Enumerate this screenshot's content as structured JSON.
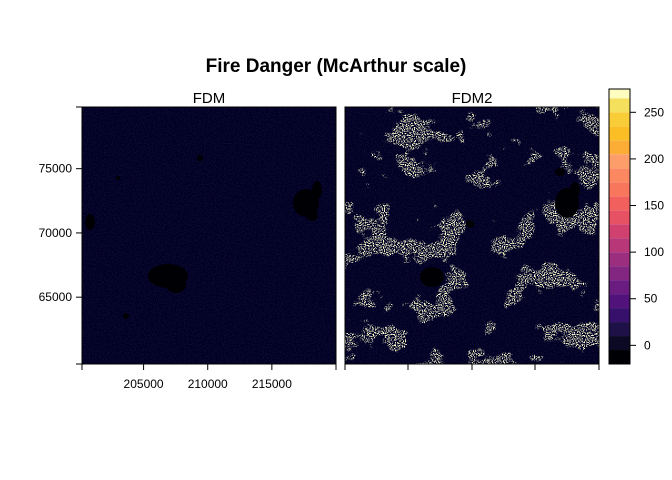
{
  "chart_data": {
    "type": "heatmap",
    "title": "Fire Danger (McArthur scale)",
    "panels": [
      {
        "name": "FDM",
        "dominant_value": 0,
        "hot_fraction": 0.0
      },
      {
        "name": "FDM2",
        "dominant_value": 0,
        "hot_fraction": 0.22,
        "hot_value": 270
      }
    ],
    "x_ticks": [
      {
        "value": 205000,
        "label": "205000"
      },
      {
        "value": 210000,
        "label": "210000"
      },
      {
        "value": 215000,
        "label": "215000"
      }
    ],
    "y_ticks": [
      {
        "value": 65000,
        "label": "65000"
      },
      {
        "value": 70000,
        "label": "70000"
      },
      {
        "value": 75000,
        "label": "75000"
      }
    ],
    "xlim": [
      200200,
      220000
    ],
    "ylim": [
      59800,
      79800
    ],
    "colorkey": {
      "range": [
        -20,
        275
      ],
      "breaks": [
        -20,
        -5,
        10,
        25,
        40,
        55,
        70,
        85,
        100,
        115,
        130,
        145,
        160,
        175,
        190,
        205,
        220,
        235,
        250,
        265,
        275
      ],
      "colors": [
        "#000004",
        "#0b0924",
        "#1d1147",
        "#36106b",
        "#51127c",
        "#6a1c81",
        "#822681",
        "#9c2e7f",
        "#b73779",
        "#d0416f",
        "#e65164",
        "#f1605d",
        "#f8765c",
        "#fb8861",
        "#fd9d6a",
        "#fcad35",
        "#fbbe24",
        "#f8cd37",
        "#f4e05c",
        "#fcfdbf"
      ],
      "ticks": [
        {
          "value": 0,
          "label": "0"
        },
        {
          "value": 50,
          "label": "50"
        },
        {
          "value": 100,
          "label": "100"
        },
        {
          "value": 150,
          "label": "150"
        },
        {
          "value": 200,
          "label": "200"
        },
        {
          "value": 250,
          "label": "250"
        }
      ]
    },
    "background_color": "#0e0a2c",
    "dark_patch_color": "#000004",
    "hot_color": "#fcfd9f"
  }
}
